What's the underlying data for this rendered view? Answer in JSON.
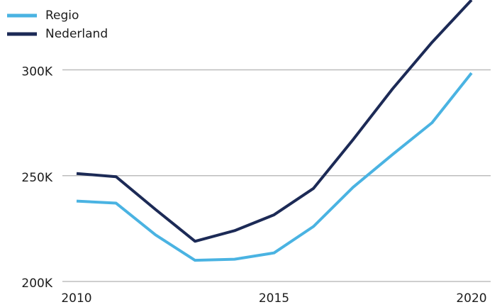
{
  "chart_data": {
    "type": "line",
    "x": [
      2010,
      2011,
      2012,
      2013,
      2014,
      2015,
      2016,
      2017,
      2018,
      2019,
      2020
    ],
    "series": [
      {
        "name": "Regio",
        "color": "#4ab3e2",
        "values": [
          238,
          237,
          222,
          210,
          210.5,
          213.5,
          226,
          244.5,
          260,
          275,
          298.5
        ]
      },
      {
        "name": "Nederland",
        "color": "#1c2a56",
        "values": [
          251,
          249.5,
          234,
          219,
          224,
          231.5,
          244,
          267,
          291,
          313,
          333
        ]
      }
    ],
    "xlim": [
      2010,
      2020
    ],
    "xticks": [
      2010,
      2015,
      2020
    ],
    "ylim": [
      200,
      333
    ],
    "yticks": [
      {
        "value": 200,
        "label": "200K"
      },
      {
        "value": 250,
        "label": "250K"
      },
      {
        "value": 300,
        "label": "300K"
      }
    ],
    "grid": true,
    "legend": "top-left"
  }
}
